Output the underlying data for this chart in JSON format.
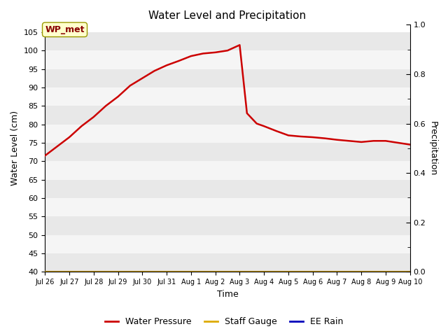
{
  "title": "Water Level and Precipitation",
  "xlabel": "Time",
  "ylabel_left": "Water Level (cm)",
  "ylabel_right": "Precipitation",
  "annotation_text": "WP_met",
  "ylim_left": [
    40,
    107
  ],
  "ylim_right": [
    0.0,
    1.0
  ],
  "yticks_left": [
    40,
    45,
    50,
    55,
    60,
    65,
    70,
    75,
    80,
    85,
    90,
    95,
    100,
    105
  ],
  "yticks_right_major": [
    0.0,
    0.2,
    0.4,
    0.6,
    0.8,
    1.0
  ],
  "yticks_right_minor": [
    0.1,
    0.3,
    0.5,
    0.7,
    0.9
  ],
  "xtick_labels": [
    "Jul 26",
    "Jul 27",
    "Jul 28",
    "Jul 29",
    "Jul 30",
    "Jul 31",
    "Aug 1",
    "Aug 2",
    "Aug 3",
    "Aug 4",
    "Aug 5",
    "Aug 6",
    "Aug 7",
    "Aug 8",
    "Aug 9",
    "Aug 10"
  ],
  "water_pressure_x": [
    0,
    0.5,
    1,
    1.5,
    2,
    2.5,
    3,
    3.5,
    4,
    4.5,
    5,
    5.5,
    6,
    6.5,
    7,
    7.2,
    7.5,
    8,
    8.3,
    8.7,
    9,
    9.5,
    10,
    10.5,
    11,
    11.5,
    12,
    12.5,
    13,
    13.5,
    14,
    14.5,
    15
  ],
  "water_pressure_y": [
    71.5,
    74.0,
    76.5,
    79.5,
    82.0,
    85.0,
    87.5,
    90.5,
    92.5,
    94.5,
    96.0,
    97.2,
    98.5,
    99.2,
    99.5,
    99.7,
    100.0,
    101.5,
    83.0,
    80.2,
    79.5,
    78.2,
    77.0,
    76.7,
    76.5,
    76.2,
    75.8,
    75.5,
    75.2,
    75.5,
    75.5,
    75.0,
    74.5
  ],
  "water_pressure_color": "#cc0000",
  "staff_gauge_color": "#ddaa00",
  "ee_rain_color": "#0000bb",
  "figure_bg_color": "#ffffff",
  "band_colors": [
    "#e8e8e8",
    "#f5f5f5"
  ],
  "legend_labels": [
    "Water Pressure",
    "Staff Gauge",
    "EE Rain"
  ]
}
